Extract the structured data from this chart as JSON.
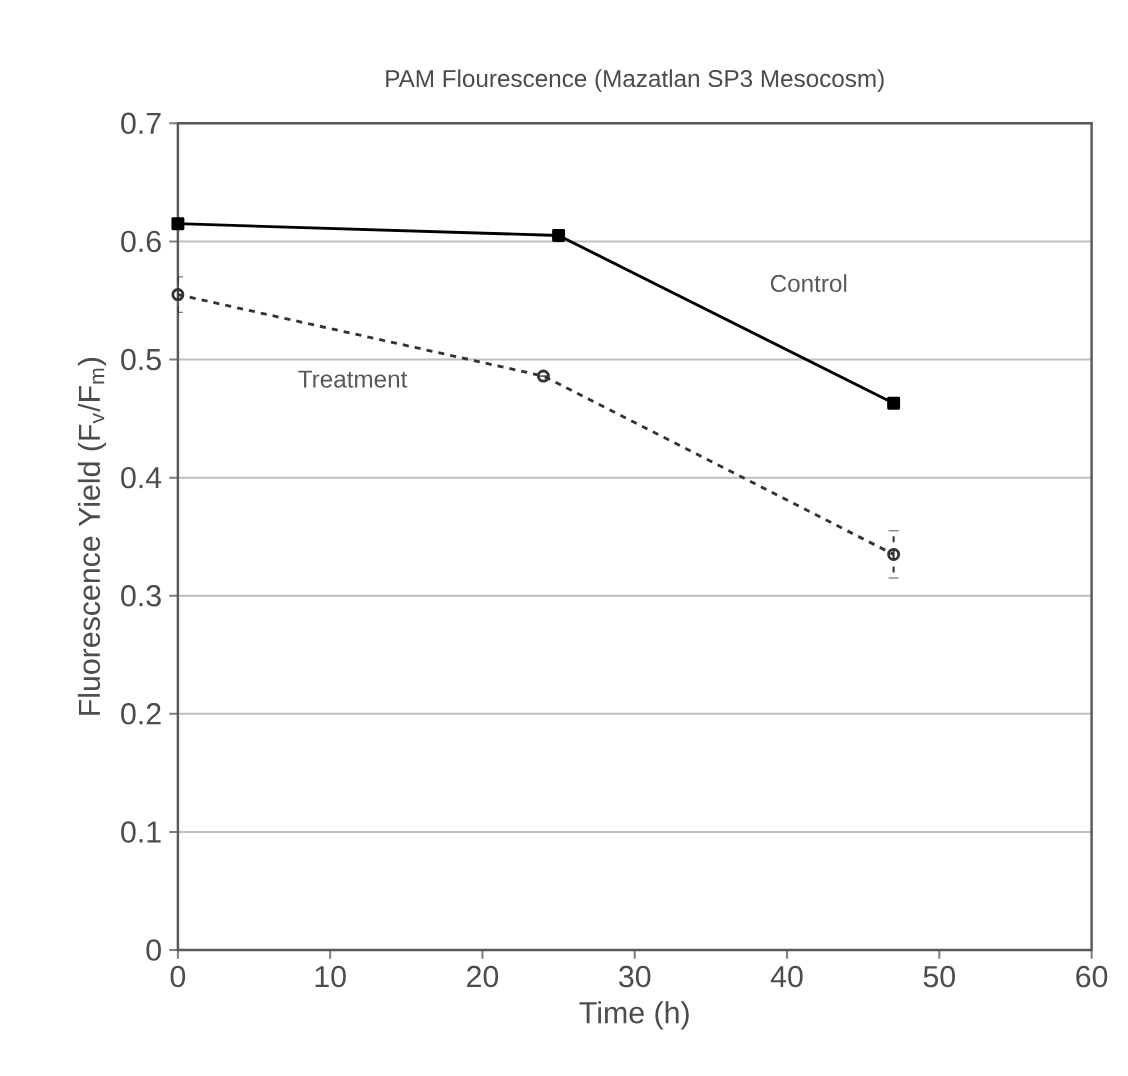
{
  "chart_data": {
    "type": "line",
    "title": "PAM Flourescence (Mazatlan SP3 Mesocosm)",
    "xlabel": "Time (h)",
    "ylabel": "Fluorescence Yield (F$_{v}$/F$_{m}$)",
    "xlim": [
      0,
      60
    ],
    "xticks": [
      0,
      10,
      20,
      30,
      40,
      50,
      60
    ],
    "ylim": [
      0,
      0.7
    ],
    "yticks": [
      0,
      0.1,
      0.2,
      0.3,
      0.4,
      0.5,
      0.6,
      0.7
    ],
    "grid": "y",
    "legend": false,
    "series": [
      {
        "name": "Control",
        "color": "#000000",
        "x": [
          0,
          25,
          47
        ],
        "values": [
          0.615,
          0.605,
          0.463
        ],
        "marker": "square",
        "line_style": "solid"
      },
      {
        "name": "Treatment",
        "color": "#333333",
        "x": [
          0,
          24,
          47
        ],
        "values": [
          0.555,
          0.486,
          0.335
        ],
        "errors": [
          0.015,
          null,
          0.02
        ],
        "marker": "circle",
        "line_style": "dashed"
      }
    ]
  }
}
